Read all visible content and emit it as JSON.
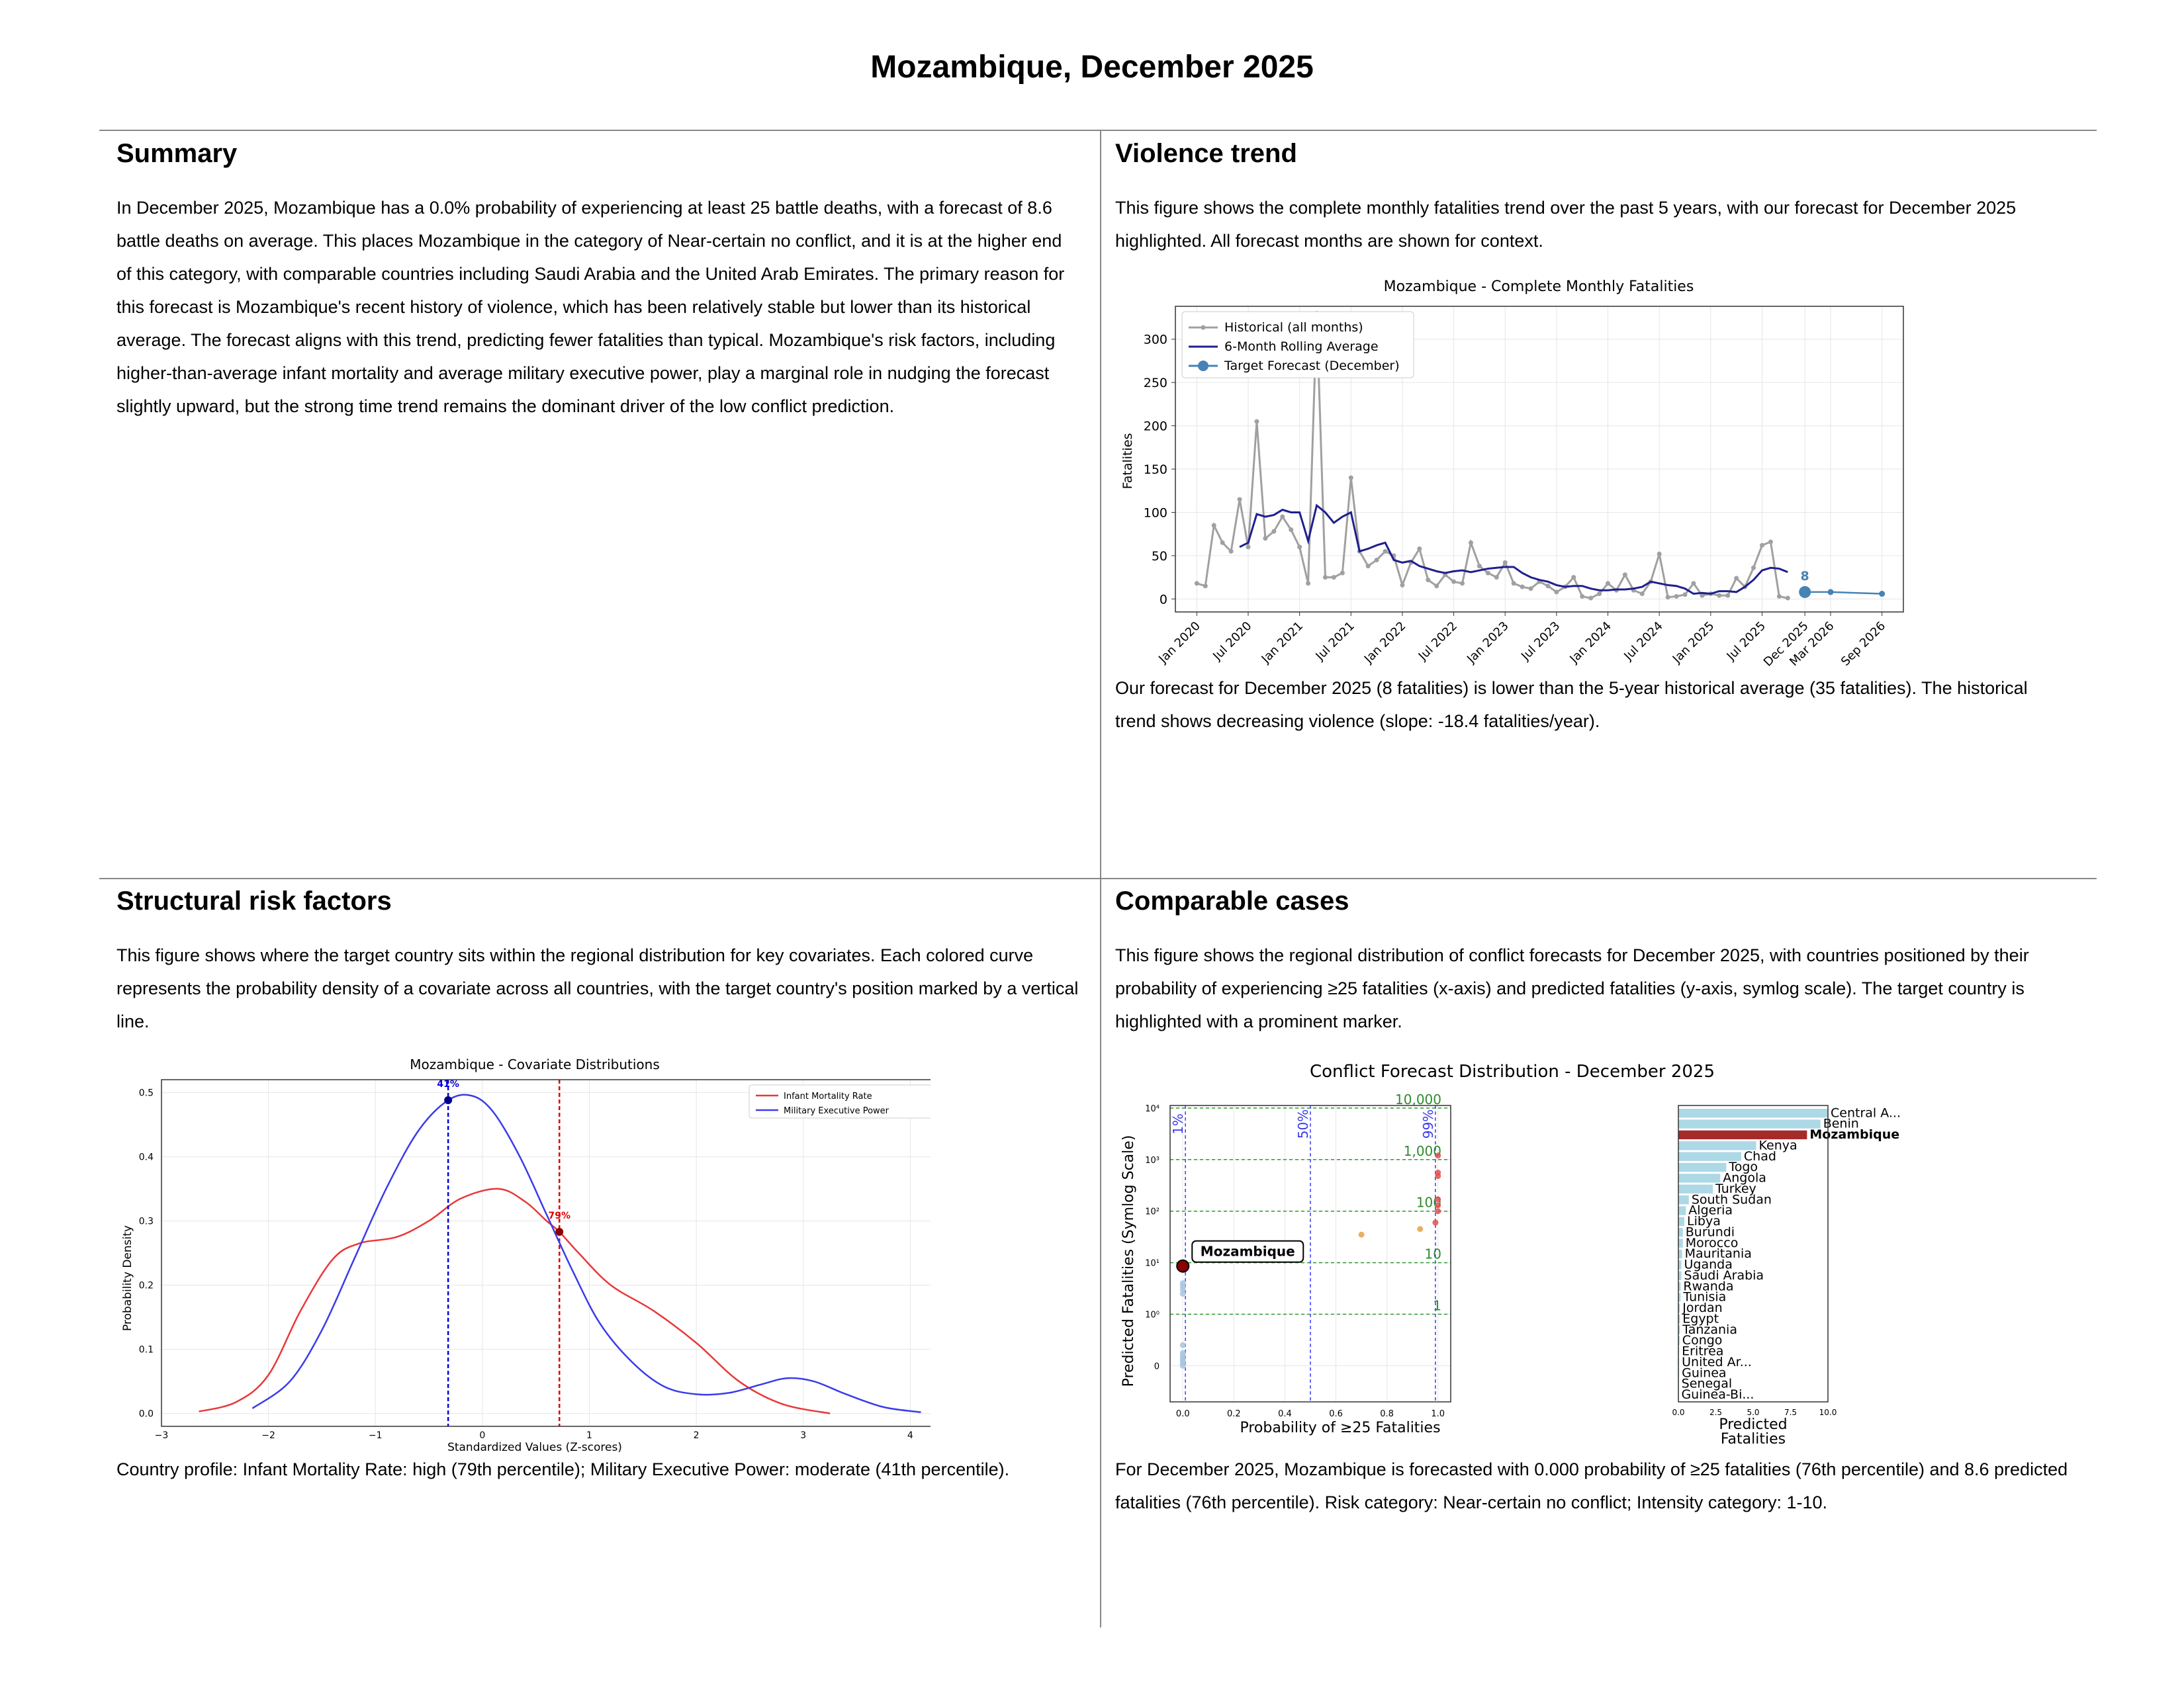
{
  "page": {
    "title": "Mozambique, December 2025"
  },
  "summary": {
    "heading": "Summary",
    "text": "In December 2025, Mozambique has a 0.0% probability of experiencing at least 25 battle deaths, with a forecast of 8.6 battle deaths on average. This places Mozambique in the category of Near-certain no conflict, and it is at the higher end of this category, with comparable countries including Saudi Arabia and the United Arab Emirates. The primary reason for this forecast is Mozambique's recent history of violence, which has been relatively stable but lower than its historical average. The forecast aligns with this trend, predicting fewer fatalities than typical. Mozambique's risk factors, including higher-than-average infant mortality and average military executive power, play a marginal role in nudging the forecast slightly upward, but the strong time trend remains the dominant driver of the low conflict prediction."
  },
  "violence": {
    "heading": "Violence trend",
    "intro": "This figure shows the complete monthly fatalities trend over the past 5 years, with our forecast for December 2025 highlighted. All forecast months are shown for context.",
    "caption": "Our forecast for December 2025 (8 fatalities) is lower than the 5-year historical average (35 fatalities). The historical trend shows decreasing violence (slope: -18.4 fatalities/year)."
  },
  "structural": {
    "heading": "Structural risk factors",
    "intro": "This figure shows where the target country sits within the regional distribution for key covariates. Each colored curve represents the probability density of a covariate across all countries, with the target country's position marked by a vertical line.",
    "caption": "Country profile: Infant Mortality Rate: high (79th percentile); Military Executive Power: moderate (41th percentile)."
  },
  "comparable": {
    "heading": "Comparable cases",
    "intro": "This figure shows the regional distribution of conflict forecasts for December 2025, with countries positioned by their probability of experiencing ≥25 fatalities (x-axis) and predicted fatalities (y-axis, symlog scale). The target country is highlighted with a prominent marker.",
    "caption": "For December 2025, Mozambique is forecasted with 0.000 probability of ≥25 fatalities (76th percentile) and 8.6 predicted fatalities (76th percentile). Risk category: Near-certain no conflict; Intensity category: 1-10."
  },
  "chart_data": [
    {
      "type": "line",
      "title": "Mozambique - Complete Monthly Fatalities",
      "ylabel": "Fatalities",
      "xlabel": "",
      "ylim": [
        -15,
        338
      ],
      "x_ticks": [
        "Jan 2020",
        "Jul 2020",
        "Jan 2021",
        "Jul 2021",
        "Jan 2022",
        "Jul 2022",
        "Jan 2023",
        "Jul 2023",
        "Jan 2024",
        "Jul 2024",
        "Jan 2025",
        "Jul 2025",
        "Dec 2025",
        "Mar 2026",
        "Sep 2026"
      ],
      "y_ticks": [
        0,
        50,
        100,
        150,
        200,
        250,
        300
      ],
      "grid": true,
      "legend": {
        "position": "top-left",
        "entries": [
          "Historical (all months)",
          "6-Month Rolling Average",
          "Target Forecast (December)"
        ]
      },
      "series": [
        {
          "name": "Historical (all months)",
          "color": "#a0a0a0",
          "x": [
            "2020-01",
            "2020-02",
            "2020-03",
            "2020-04",
            "2020-05",
            "2020-06",
            "2020-07",
            "2020-08",
            "2020-09",
            "2020-10",
            "2020-11",
            "2020-12",
            "2021-01",
            "2021-02",
            "2021-03",
            "2021-04",
            "2021-05",
            "2021-06",
            "2021-07",
            "2021-08",
            "2021-09",
            "2021-10",
            "2021-11",
            "2021-12",
            "2022-01",
            "2022-02",
            "2022-03",
            "2022-04",
            "2022-05",
            "2022-06",
            "2022-07",
            "2022-08",
            "2022-09",
            "2022-10",
            "2022-11",
            "2022-12",
            "2023-01",
            "2023-02",
            "2023-03",
            "2023-04",
            "2023-05",
            "2023-06",
            "2023-07",
            "2023-08",
            "2023-09",
            "2023-10",
            "2023-11",
            "2023-12",
            "2024-01",
            "2024-02",
            "2024-03",
            "2024-04",
            "2024-05",
            "2024-06",
            "2024-07",
            "2024-08",
            "2024-09",
            "2024-10",
            "2024-11",
            "2024-12",
            "2025-01",
            "2025-02",
            "2025-03",
            "2025-04",
            "2025-05",
            "2025-06",
            "2025-07",
            "2025-08",
            "2025-09",
            "2025-10"
          ],
          "y": [
            18,
            15,
            85,
            65,
            55,
            115,
            60,
            205,
            70,
            78,
            95,
            80,
            60,
            18,
            330,
            25,
            25,
            30,
            140,
            55,
            38,
            45,
            55,
            50,
            16,
            42,
            58,
            22,
            15,
            28,
            20,
            18,
            65,
            38,
            30,
            25,
            42,
            18,
            14,
            12,
            20,
            15,
            8,
            14,
            25,
            3,
            1,
            6,
            18,
            10,
            28,
            10,
            6,
            20,
            52,
            2,
            3,
            5,
            18,
            4,
            6,
            4,
            4,
            24,
            14,
            36,
            62,
            66,
            3,
            1
          ]
        },
        {
          "name": "6-Month Rolling Average",
          "color": "#1f1f8f",
          "x": [
            "2020-06",
            "2020-07",
            "2020-08",
            "2020-09",
            "2020-10",
            "2020-11",
            "2020-12",
            "2021-01",
            "2021-02",
            "2021-03",
            "2021-04",
            "2021-05",
            "2021-06",
            "2021-07",
            "2021-08",
            "2021-09",
            "2021-10",
            "2021-11",
            "2021-12",
            "2022-01",
            "2022-02",
            "2022-03",
            "2022-04",
            "2022-05",
            "2022-06",
            "2022-07",
            "2022-08",
            "2022-09",
            "2022-10",
            "2022-11",
            "2022-12",
            "2023-01",
            "2023-02",
            "2023-03",
            "2023-04",
            "2023-05",
            "2023-06",
            "2023-07",
            "2023-08",
            "2023-09",
            "2023-10",
            "2023-11",
            "2023-12",
            "2024-01",
            "2024-02",
            "2024-03",
            "2024-04",
            "2024-05",
            "2024-06",
            "2024-07",
            "2024-08",
            "2024-09",
            "2024-10",
            "2024-11",
            "2024-12",
            "2025-01",
            "2025-02",
            "2025-03",
            "2025-04",
            "2025-05",
            "2025-06",
            "2025-07",
            "2025-08",
            "2025-09",
            "2025-10"
          ],
          "y": [
            60,
            65,
            98,
            95,
            97,
            103,
            100,
            100,
            67,
            108,
            100,
            88,
            95,
            100,
            55,
            58,
            62,
            65,
            45,
            42,
            44,
            38,
            35,
            32,
            30,
            32,
            33,
            31,
            33,
            35,
            36,
            37,
            37,
            30,
            25,
            22,
            20,
            16,
            14,
            15,
            15,
            12,
            10,
            10,
            11,
            11,
            12,
            14,
            20,
            18,
            16,
            15,
            12,
            6,
            7,
            6,
            9,
            9,
            8,
            14,
            22,
            33,
            36,
            35,
            31
          ]
        },
        {
          "name": "Target Forecast (December)",
          "color": "#4682b4",
          "x": [
            "2025-12",
            "2026-03",
            "2026-09"
          ],
          "y": [
            8,
            8,
            6
          ],
          "label": "8"
        }
      ]
    },
    {
      "type": "line",
      "title": "Mozambique - Covariate Distributions",
      "xlabel": "Standardized Values (Z-scores)",
      "ylabel": "Probability Density",
      "xlim": [
        -3,
        4.4
      ],
      "ylim": [
        -0.02,
        0.52
      ],
      "x_ticks": [
        "−3",
        "−2",
        "−1",
        "0",
        "1",
        "2",
        "3",
        "4"
      ],
      "y_ticks": [
        "0.0",
        "0.1",
        "0.2",
        "0.3",
        "0.4",
        "0.5"
      ],
      "grid": true,
      "legend": {
        "position": "top-right",
        "entries": [
          "Infant Mortality Rate",
          "Military Executive Power"
        ]
      },
      "series": [
        {
          "name": "Infant Mortality Rate",
          "color": "#e8383a",
          "x": [
            -2.65,
            -2.3,
            -2.0,
            -1.7,
            -1.4,
            -1.15,
            -0.8,
            -0.5,
            -0.2,
            0.15,
            0.4,
            0.6,
            0.72,
            0.9,
            1.2,
            1.6,
            2.0,
            2.4,
            2.8,
            3.25
          ],
          "y": [
            0.003,
            0.018,
            0.06,
            0.16,
            0.24,
            0.265,
            0.275,
            0.3,
            0.335,
            0.35,
            0.33,
            0.3,
            0.283,
            0.25,
            0.2,
            0.16,
            0.11,
            0.05,
            0.015,
            0.0
          ],
          "marker": {
            "x": 0.72,
            "y": 0.283,
            "label": "79%"
          }
        },
        {
          "name": "Military Executive Power",
          "color": "#3b3bea",
          "x": [
            -2.15,
            -1.8,
            -1.5,
            -1.2,
            -0.9,
            -0.6,
            -0.32,
            -0.1,
            0.1,
            0.35,
            0.6,
            0.85,
            1.1,
            1.4,
            1.7,
            2.0,
            2.3,
            2.6,
            2.85,
            3.1,
            3.4,
            3.75,
            4.1
          ],
          "y": [
            0.008,
            0.05,
            0.13,
            0.24,
            0.35,
            0.44,
            0.488,
            0.495,
            0.47,
            0.4,
            0.31,
            0.22,
            0.14,
            0.08,
            0.042,
            0.03,
            0.032,
            0.045,
            0.055,
            0.05,
            0.03,
            0.01,
            0.002
          ],
          "marker": {
            "x": -0.32,
            "y": 0.488,
            "label": "41%"
          }
        }
      ]
    },
    {
      "type": "scatter",
      "title": "Conflict Forecast Distribution - December 2025",
      "xlabel": "Probability of ≥25 Fatalities",
      "ylabel": "Predicted Fatalities (Symlog Scale)",
      "x_ticks": [
        "0.0",
        "0.2",
        "0.4",
        "0.6",
        "0.8",
        "1.0"
      ],
      "y_ticks": [
        "0",
        "10⁰",
        "10¹",
        "10²",
        "10³",
        "10⁴"
      ],
      "y_scale": "symlog",
      "vlines": [
        {
          "x": 0.01,
          "label": "1%"
        },
        {
          "x": 0.5,
          "label": "50%"
        },
        {
          "x": 0.99,
          "label": "99%"
        }
      ],
      "hlines": [
        {
          "y": 1,
          "label": "1"
        },
        {
          "y": 10,
          "label": "10"
        },
        {
          "y": 100,
          "label": "100"
        },
        {
          "y": 1000,
          "label": "1,000"
        },
        {
          "y": 10000,
          "label": "10,000"
        }
      ],
      "target": {
        "label": "Mozambique",
        "x": 0.0,
        "y": 8.6
      },
      "points": [
        {
          "x": 0.7,
          "y": 35,
          "color": "#e8a04a"
        },
        {
          "x": 0.93,
          "y": 45,
          "color": "#e8a04a"
        },
        {
          "x": 0.99,
          "y": 60,
          "color": "#e05050"
        },
        {
          "x": 1.0,
          "y": 100,
          "color": "#e05050"
        },
        {
          "x": 1.0,
          "y": 130,
          "color": "#e05050"
        },
        {
          "x": 1.0,
          "y": 170,
          "color": "#e05050"
        },
        {
          "x": 1.0,
          "y": 480,
          "color": "#e05050"
        },
        {
          "x": 1.0,
          "y": 560,
          "color": "#e05050"
        },
        {
          "x": 1.0,
          "y": 1200,
          "color": "#e05050"
        },
        {
          "x": 0.0,
          "y": 2.5,
          "color": "#a8c4e0"
        },
        {
          "x": 0.0,
          "y": 3,
          "color": "#a8c4e0"
        },
        {
          "x": 0.0,
          "y": 3.5,
          "color": "#a8c4e0"
        },
        {
          "x": 0.0,
          "y": 4,
          "color": "#a8c4e0"
        },
        {
          "x": 0.0,
          "y": 0.4,
          "color": "#a8c4e0"
        },
        {
          "x": 0.0,
          "y": 0.0,
          "color": "#a8c4e0"
        },
        {
          "x": 0.0,
          "y": 0.05,
          "color": "#a8c4e0"
        },
        {
          "x": 0.0,
          "y": 0.1,
          "color": "#a8c4e0"
        },
        {
          "x": 0.0,
          "y": 0.15,
          "color": "#a8c4e0"
        },
        {
          "x": 0.0,
          "y": 0.2,
          "color": "#a8c4e0"
        },
        {
          "x": 0.0,
          "y": 0.25,
          "color": "#a8c4e0"
        }
      ]
    },
    {
      "type": "bar",
      "orientation": "horizontal",
      "xlabel": "Predicted\nFatalities",
      "x_ticks": [
        "0.0",
        "2.5",
        "5.0",
        "7.5",
        "10.0"
      ],
      "xlim": [
        0,
        10
      ],
      "highlight": "Mozambique",
      "categories": [
        "Central A...",
        "Benin",
        "Mozambique",
        "Kenya",
        "Chad",
        "Togo",
        "Angola",
        "Turkey",
        "South Sudan",
        "Algeria",
        "Libya",
        "Burundi",
        "Morocco",
        "Mauritania",
        "Uganda",
        "Saudi Arabia",
        "Rwanda",
        "Tunisia",
        "Jordan",
        "Egypt",
        "Tanzania",
        "Congo",
        "Eritrea",
        "United Ar...",
        "Guinea",
        "Senegal",
        "Guinea-Bi..."
      ],
      "values": [
        10,
        9.5,
        8.6,
        5.2,
        4.2,
        3.2,
        2.8,
        2.3,
        0.7,
        0.5,
        0.4,
        0.3,
        0.3,
        0.25,
        0.2,
        0.2,
        0.15,
        0.15,
        0.1,
        0.1,
        0.1,
        0.08,
        0.05,
        0.05,
        0.05,
        0.03,
        0.02
      ]
    }
  ]
}
